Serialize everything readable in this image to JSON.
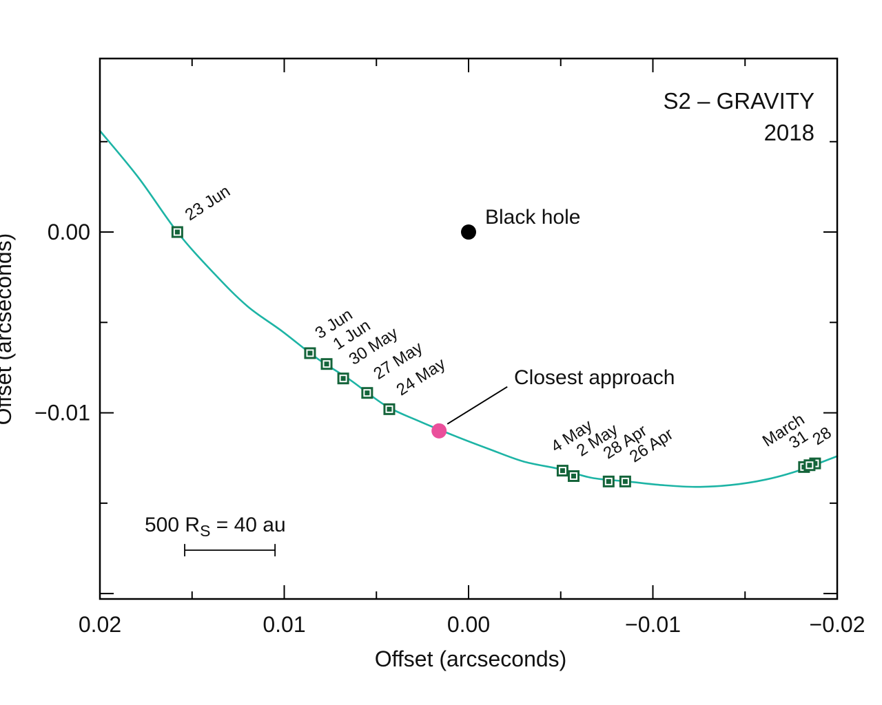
{
  "title": {
    "line1": "S2 – GRAVITY",
    "line2": "2018"
  },
  "axes": {
    "x_label": "Offset (arcseconds)",
    "y_label": "Offset (arcseconds)",
    "x_ticks": [
      "0.02",
      "0.01",
      "0.00",
      "−0.01",
      "−0.02"
    ],
    "y_ticks": [
      "0.00",
      "−0.01",
      null
    ]
  },
  "annotations": {
    "black_hole": "Black hole",
    "closest_approach": "Closest approach",
    "scale_bar": {
      "part1": "500 R",
      "sub": "S",
      "part2": " = 40 au"
    }
  },
  "chart_data": {
    "type": "scatter",
    "title": "S2 – GRAVITY 2018",
    "xlabel": "Offset (arcseconds)",
    "ylabel": "Offset (arcseconds)",
    "xlim": [
      0.02,
      -0.02
    ],
    "ylim": [
      -0.0203,
      0.0096
    ],
    "grid": false,
    "x_major_ticks": [
      0.02,
      0.01,
      0,
      -0.01,
      -0.02
    ],
    "x_minor_ticks": [
      0.015,
      0.005,
      -0.005,
      -0.015
    ],
    "y_major_ticks": [
      0,
      -0.01,
      -0.02
    ],
    "y_minor_ticks": [
      0.005,
      -0.005,
      -0.015
    ],
    "marker_color": "#14643a",
    "orbit_curve": {
      "name": "S2 orbit trajectory",
      "color": "#1db4a5",
      "points": [
        [
          0.02,
          0.0056
        ],
        [
          0.0179,
          0.003
        ],
        [
          0.0158,
          0.0
        ],
        [
          0.0138,
          -0.0023
        ],
        [
          0.012,
          -0.0041
        ],
        [
          0.0101,
          -0.0055
        ],
        [
          0.0082,
          -0.007
        ],
        [
          0.0064,
          -0.0082
        ],
        [
          0.0045,
          -0.0096
        ],
        [
          0.0026,
          -0.0105
        ],
        [
          0.0007,
          -0.0113
        ],
        [
          -0.0011,
          -0.012
        ],
        [
          -0.003,
          -0.0127
        ],
        [
          -0.0049,
          -0.0131
        ],
        [
          -0.0067,
          -0.0136
        ],
        [
          -0.0086,
          -0.0138
        ],
        [
          -0.0105,
          -0.014
        ],
        [
          -0.0123,
          -0.0141
        ],
        [
          -0.0142,
          -0.014
        ],
        [
          -0.0161,
          -0.0137
        ],
        [
          -0.0179,
          -0.0132
        ],
        [
          -0.02,
          -0.0124
        ]
      ]
    },
    "measurements": [
      {
        "label": "23 Jun",
        "x": 0.0158,
        "y": 0.0,
        "ldx": 18,
        "ldy": -16
      },
      {
        "label": "3 Jun",
        "x": 0.0086,
        "y": -0.0067,
        "ldx": 14,
        "ldy": -20
      },
      {
        "label": "1 Jun",
        "x": 0.0077,
        "y": -0.0073,
        "ldx": 16,
        "ldy": -20
      },
      {
        "label": "30 May",
        "x": 0.0068,
        "y": -0.0081,
        "ldx": 15,
        "ldy": -19
      },
      {
        "label": "27 May",
        "x": 0.0055,
        "y": -0.0089,
        "ldx": 16,
        "ldy": -19
      },
      {
        "label": "24 May",
        "x": 0.0043,
        "y": -0.0098,
        "ldx": 17,
        "ldy": -19
      },
      {
        "label": "4 May",
        "x": -0.0051,
        "y": -0.0132,
        "ldx": -10,
        "ldy": -26
      },
      {
        "label": "2 May",
        "x": -0.0057,
        "y": -0.0135,
        "ldx": 11,
        "ldy": -28
      },
      {
        "label": "28 Apr",
        "x": -0.0076,
        "y": -0.0138,
        "ldx": -1,
        "ldy": -32
      },
      {
        "label": "26 Apr",
        "x": -0.0085,
        "y": -0.0138,
        "ldx": 13,
        "ldy": -27
      },
      {
        "label": "31",
        "x": -0.0182,
        "y": -0.013,
        "ldx": -15,
        "ldy": -26
      },
      {
        "label": "28",
        "x": -0.0188,
        "y": -0.0128,
        "ldx": 3,
        "ldy": -26
      },
      {
        "label": "",
        "x": -0.0185,
        "y": -0.0129,
        "ldx": 0,
        "ldy": 0
      }
    ],
    "march_label": {
      "text": "March",
      "x": -0.0162,
      "y": -0.0119
    },
    "black_hole": {
      "label": "Black hole",
      "x": 0,
      "y": 0
    },
    "closest_approach": {
      "label": "Closest approach",
      "x": 0.0016,
      "y": -0.011,
      "color": "#ea4f9b"
    },
    "scale_bar": {
      "label": "500 R_S = 40 au",
      "x1": 0.0154,
      "x2": 0.0105,
      "y": -0.0176
    }
  }
}
